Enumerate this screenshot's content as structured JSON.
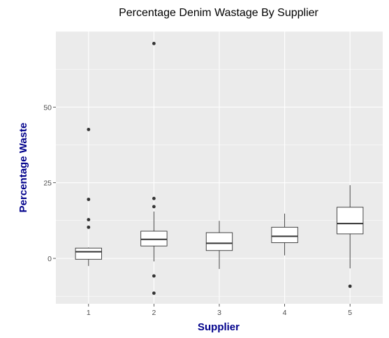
{
  "chart_data": {
    "type": "boxplot",
    "title": "Percentage Denim Wastage By Supplier",
    "xlabel": "Supplier",
    "ylabel": "Percentage Waste",
    "categories": [
      "1",
      "2",
      "3",
      "4",
      "5"
    ],
    "y_ticks": [
      0,
      25,
      50
    ],
    "ylim": [
      -15,
      75
    ],
    "grid": true,
    "boxes": [
      {
        "category": "1",
        "whisker_low": -2.5,
        "q1": -0.3,
        "median": 2.2,
        "q3": 3.4,
        "whisker_high": 3.6,
        "outliers": [
          42.6,
          19.5,
          12.8,
          10.3
        ]
      },
      {
        "category": "2",
        "whisker_low": -1.0,
        "q1": 4.1,
        "median": 6.3,
        "q3": 9.0,
        "whisker_high": 15.5,
        "outliers": [
          71.0,
          19.8,
          17.1,
          -5.8,
          -11.5
        ]
      },
      {
        "category": "3",
        "whisker_low": -3.5,
        "q1": 2.6,
        "median": 5.0,
        "q3": 8.5,
        "whisker_high": 12.4,
        "outliers": []
      },
      {
        "category": "4",
        "whisker_low": 1.0,
        "q1": 5.2,
        "median": 7.3,
        "q3": 10.3,
        "whisker_high": 14.8,
        "outliers": []
      },
      {
        "category": "5",
        "whisker_low": -3.3,
        "q1": 8.1,
        "median": 11.5,
        "q3": 16.9,
        "whisker_high": 24.2,
        "outliers": [
          -9.2
        ]
      }
    ],
    "colors": {
      "panel": "#ebebeb",
      "grid": "#ffffff",
      "box_fill": "#ffffff",
      "box_stroke": "#333333",
      "outlier": "#333333",
      "axis_title": "#00008b"
    }
  }
}
